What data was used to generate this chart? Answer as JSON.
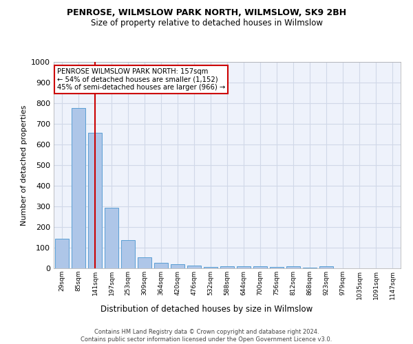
{
  "title1": "PENROSE, WILMSLOW PARK NORTH, WILMSLOW, SK9 2BH",
  "title2": "Size of property relative to detached houses in Wilmslow",
  "xlabel": "Distribution of detached houses by size in Wilmslow",
  "ylabel": "Number of detached properties",
  "bar_color": "#aec6e8",
  "bar_edge_color": "#5a9fd4",
  "categories": [
    "29sqm",
    "85sqm",
    "141sqm",
    "197sqm",
    "253sqm",
    "309sqm",
    "364sqm",
    "420sqm",
    "476sqm",
    "532sqm",
    "588sqm",
    "644sqm",
    "700sqm",
    "756sqm",
    "812sqm",
    "868sqm",
    "923sqm",
    "979sqm",
    "1035sqm",
    "1091sqm",
    "1147sqm"
  ],
  "values": [
    142,
    778,
    658,
    295,
    138,
    55,
    28,
    20,
    13,
    7,
    10,
    10,
    10,
    8,
    10,
    3,
    10,
    0,
    0,
    0,
    0
  ],
  "ylim": [
    0,
    1000
  ],
  "yticks": [
    0,
    100,
    200,
    300,
    400,
    500,
    600,
    700,
    800,
    900,
    1000
  ],
  "vline_x": 2,
  "vline_color": "#cc0000",
  "annotation_text": "PENROSE WILMSLOW PARK NORTH: 157sqm\n← 54% of detached houses are smaller (1,152)\n45% of semi-detached houses are larger (966) →",
  "annotation_box_color": "#ffffff",
  "annotation_box_edge": "#cc0000",
  "footnote": "Contains HM Land Registry data © Crown copyright and database right 2024.\nContains public sector information licensed under the Open Government Licence v3.0.",
  "grid_color": "#d0d8e8",
  "background_color": "#eef2fb"
}
